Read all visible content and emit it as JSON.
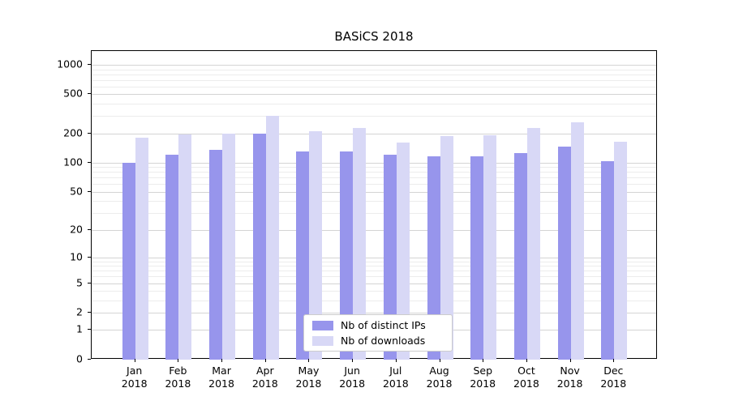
{
  "chart_data": {
    "type": "bar",
    "title": "BASiCS 2018",
    "categories": [
      "Jan",
      "Feb",
      "Mar",
      "Apr",
      "May",
      "Jun",
      "Jul",
      "Aug",
      "Sep",
      "Oct",
      "Nov",
      "Dec"
    ],
    "year": "2018",
    "series": [
      {
        "name": "Nb of distinct IPs",
        "color": "#9795ec",
        "values": [
          100,
          120,
          136,
          200,
          131,
          131,
          121,
          117,
          117,
          126,
          147,
          104
        ]
      },
      {
        "name": "Nb of downloads",
        "color": "#d8d8f6",
        "values": [
          180,
          195,
          197,
          300,
          210,
          227,
          161,
          188,
          190,
          227,
          258,
          164
        ]
      }
    ],
    "y_axis": {
      "scale": "symlog",
      "ticks": [
        0,
        1,
        2,
        5,
        10,
        20,
        50,
        100,
        200,
        500,
        1000
      ],
      "minor_ticks": [
        3,
        4,
        6,
        7,
        8,
        9,
        30,
        40,
        60,
        70,
        80,
        90,
        300,
        400,
        600,
        700,
        800,
        900
      ],
      "range": [
        0,
        1400
      ]
    },
    "legend": {
      "position": "lower center"
    },
    "grid": true
  }
}
